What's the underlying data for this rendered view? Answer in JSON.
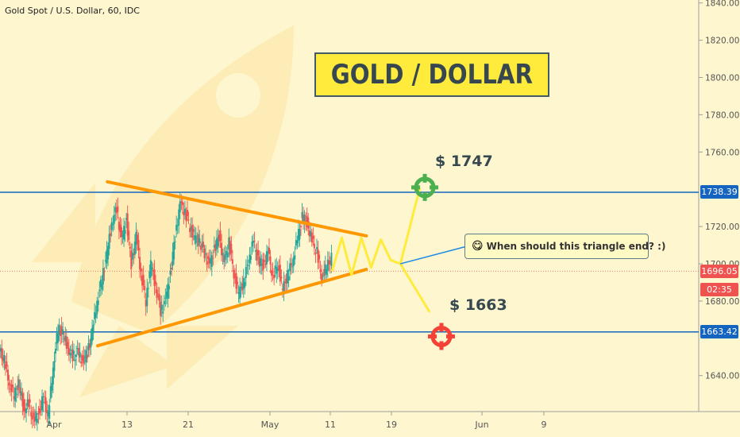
{
  "header": {
    "symbol_line": "Gold Spot / U.S. Dollar, 60, IDC"
  },
  "title_banner": {
    "text": "GOLD / DOLLAR"
  },
  "annotations": {
    "bullish_target": "$ 1747",
    "bearish_target": "$ 1663",
    "callout_emoji": "😋",
    "callout_text": "When should this triangle end? :)"
  },
  "price_axis": {
    "ticks": [
      "1840.00",
      "1820.00",
      "1800.00",
      "1780.00",
      "1760.00",
      "1720.00",
      "1700.00",
      "1680.00",
      "1640.00"
    ],
    "tag_resistance": "1738.39",
    "tag_current": "1696.05",
    "tag_timer": "02:35",
    "tag_support": "1663.42"
  },
  "time_axis": {
    "ticks": [
      "Apr",
      "13",
      "21",
      "May",
      "11",
      "19",
      "Jun",
      "9"
    ]
  },
  "colors": {
    "background": "#fdf6cf",
    "candle_up": "#26a69a",
    "candle_down": "#ef5350",
    "horizontal_lines": "#1565c0",
    "triangle": "#ff9800",
    "zigzag": "#ffeb3b",
    "target_up": "#4caf50",
    "target_down": "#f44336",
    "current_price": "#ef5350"
  },
  "chart_data": {
    "type": "candlestick",
    "title": "GOLD / DOLLAR",
    "ylim": [
      1620,
      1845
    ],
    "horizontal_levels": [
      1738.39,
      1663.42
    ],
    "current_price": 1696.05,
    "targets": [
      1747,
      1663
    ],
    "price_series": [
      [
        0,
        1653
      ],
      [
        0.5,
        1648
      ],
      [
        1,
        1636
      ],
      [
        1.5,
        1629
      ],
      [
        2,
        1635
      ],
      [
        2.5,
        1622
      ],
      [
        3,
        1625
      ],
      [
        3.5,
        1615
      ],
      [
        4,
        1620
      ],
      [
        4.5,
        1628
      ],
      [
        5,
        1618
      ],
      [
        5.5,
        1645
      ],
      [
        6,
        1665
      ],
      [
        6.5,
        1662
      ],
      [
        7,
        1655
      ],
      [
        7.5,
        1650
      ],
      [
        8,
        1652
      ],
      [
        8.5,
        1648
      ],
      [
        9,
        1652
      ],
      [
        9.5,
        1663
      ],
      [
        10,
        1680
      ],
      [
        10.5,
        1692
      ],
      [
        11,
        1705
      ],
      [
        11.5,
        1722
      ],
      [
        12,
        1730
      ],
      [
        12.5,
        1712
      ],
      [
        13,
        1724
      ],
      [
        13.5,
        1700
      ],
      [
        14,
        1715
      ],
      [
        14.5,
        1695
      ],
      [
        15,
        1680
      ],
      [
        15.5,
        1700
      ],
      [
        16,
        1688
      ],
      [
        16.5,
        1675
      ],
      [
        17,
        1680
      ],
      [
        17.5,
        1695
      ],
      [
        18,
        1715
      ],
      [
        18.5,
        1732
      ],
      [
        19,
        1728
      ],
      [
        19.5,
        1720
      ],
      [
        20,
        1714
      ],
      [
        20.5,
        1712
      ],
      [
        21,
        1706
      ],
      [
        21.5,
        1699
      ],
      [
        22,
        1708
      ],
      [
        22.5,
        1715
      ],
      [
        23,
        1700
      ],
      [
        23.5,
        1712
      ],
      [
        24,
        1695
      ],
      [
        24.5,
        1684
      ],
      [
        25,
        1690
      ],
      [
        25.5,
        1702
      ],
      [
        26,
        1712
      ],
      [
        26.5,
        1702
      ],
      [
        27,
        1699
      ],
      [
        27.5,
        1706
      ],
      [
        28,
        1693
      ],
      [
        28.5,
        1700
      ],
      [
        29,
        1686
      ],
      [
        29.5,
        1694
      ],
      [
        30,
        1701
      ],
      [
        30.5,
        1713
      ],
      [
        31,
        1725
      ],
      [
        31.5,
        1722
      ],
      [
        32,
        1712
      ],
      [
        32.5,
        1706
      ],
      [
        33,
        1693
      ],
      [
        33.5,
        1698
      ],
      [
        34,
        1703
      ]
    ],
    "trendlines": [
      {
        "name": "resistance",
        "x1": 11,
        "y1": 1744,
        "x2": 37.5,
        "y2": 1715
      },
      {
        "name": "support",
        "x1": 10,
        "y1": 1656,
        "x2": 37.5,
        "y2": 1697
      }
    ],
    "zigzag_projection": [
      [
        34,
        1696
      ],
      [
        35,
        1714
      ],
      [
        36,
        1694
      ],
      [
        37,
        1714
      ],
      [
        38,
        1698
      ],
      [
        39,
        1713
      ],
      [
        40,
        1702
      ],
      [
        41,
        1700
      ]
    ],
    "breakout_paths": [
      {
        "direction": "up",
        "points": [
          [
            41,
            1700
          ],
          [
            43,
            1741
          ]
        ]
      },
      {
        "direction": "down",
        "points": [
          [
            41,
            1700
          ],
          [
            44,
            1674
          ]
        ]
      }
    ]
  }
}
